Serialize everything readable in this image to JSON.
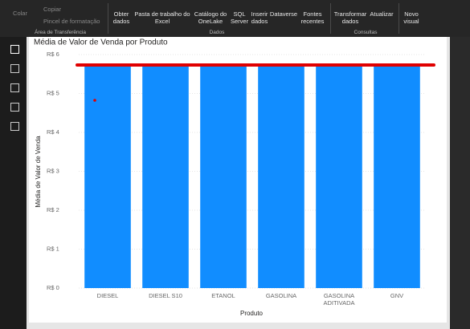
{
  "ribbon": {
    "clipboard": {
      "paste": "Colar",
      "copy": "Copiar",
      "format_painter": "Pincel de formatação",
      "group": "Área de Transferência"
    },
    "data": {
      "items": [
        "Obter dados",
        "Pasta de trabalho do Excel",
        "Catálogo do OneLake",
        "SQL Server",
        "Inserir dados",
        "Dataverse",
        "Fontes recentes"
      ],
      "group": "Dados"
    },
    "queries": {
      "items": [
        "Transformar dados",
        "Atualizar"
      ],
      "group": "Consultas"
    },
    "insert": {
      "items": [
        "Novo visual"
      ]
    }
  },
  "chart_data": {
    "type": "bar",
    "title": "Média de Valor de Venda por Produto",
    "x_label": "Produto",
    "y_label": "Média de Valor de Venda",
    "categories": [
      "DIESEL",
      "DIESEL S10",
      "ETANOL",
      "GASOLINA",
      "GASOLINA ADITIVADA",
      "GNV"
    ],
    "values": [
      5.7,
      5.7,
      5.7,
      5.7,
      5.7,
      5.7
    ],
    "color": "#118dff",
    "ylim": [
      0,
      6
    ],
    "yticks": [
      {
        "value": 0,
        "label": "R$ 0"
      },
      {
        "value": 1,
        "label": "R$ 1"
      },
      {
        "value": 2,
        "label": "R$ 2"
      },
      {
        "value": 3,
        "label": "R$ 3"
      },
      {
        "value": 4,
        "label": "R$ 4"
      },
      {
        "value": 5,
        "label": "R$ 5"
      },
      {
        "value": 6,
        "label": "R$ 6"
      }
    ],
    "grid": true
  }
}
